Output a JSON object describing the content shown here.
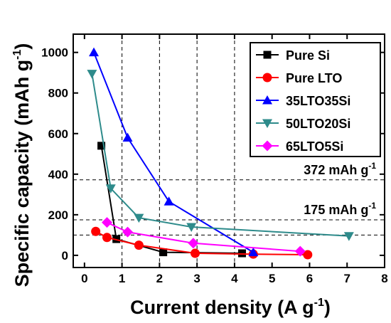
{
  "chart_data": {
    "type": "line",
    "xlabel": "Current density (A g",
    "xlabel_sup": "-1",
    "xlabel_end": ")",
    "ylabel": "Specific capacity (mAh g",
    "ylabel_sup": "-1",
    "ylabel_end": ")",
    "xlim": [
      -0.3,
      8
    ],
    "ylim": [
      -60,
      1090
    ],
    "x_ticks": [
      0,
      1,
      2,
      3,
      4,
      5,
      6,
      7,
      8
    ],
    "y_ticks": [
      0,
      200,
      400,
      600,
      800,
      1000
    ],
    "vertical_gridlines": [
      1,
      2,
      3,
      4
    ],
    "grid": "dashed",
    "legend_position": "top-right",
    "reference_lines": [
      {
        "y": 372,
        "label": "372 mAh g",
        "sup": "-1"
      },
      {
        "y": 175,
        "label": "175 mAh g",
        "sup": "-1"
      },
      {
        "y": 100,
        "label": "",
        "sup": ""
      }
    ],
    "series": [
      {
        "name": "Pure Si",
        "color": "#000000",
        "marker": "square",
        "x": [
          0.45,
          0.85,
          2.1,
          4.2
        ],
        "y": [
          540,
          80,
          15,
          10
        ]
      },
      {
        "name": "Pure LTO",
        "color": "#ff0000",
        "marker": "circle",
        "x": [
          0.3,
          0.6,
          1.45,
          2.95,
          4.5,
          5.95
        ],
        "y": [
          118,
          88,
          50,
          10,
          6,
          3
        ]
      },
      {
        "name": "35LTO35Si",
        "color": "#0000ff",
        "marker": "triangle-up",
        "x": [
          0.25,
          1.15,
          2.25,
          4.5
        ],
        "y": [
          1000,
          580,
          265,
          15
        ]
      },
      {
        "name": "50LTO20Si",
        "color": "#2e8b8b",
        "marker": "triangle-down",
        "x": [
          0.2,
          0.7,
          1.45,
          2.85,
          7.05
        ],
        "y": [
          895,
          330,
          185,
          140,
          95
        ]
      },
      {
        "name": "65LTO5Si",
        "color": "#ff00ff",
        "marker": "diamond",
        "x": [
          0.6,
          1.15,
          2.9,
          5.75
        ],
        "y": [
          162,
          115,
          60,
          20
        ]
      }
    ]
  }
}
